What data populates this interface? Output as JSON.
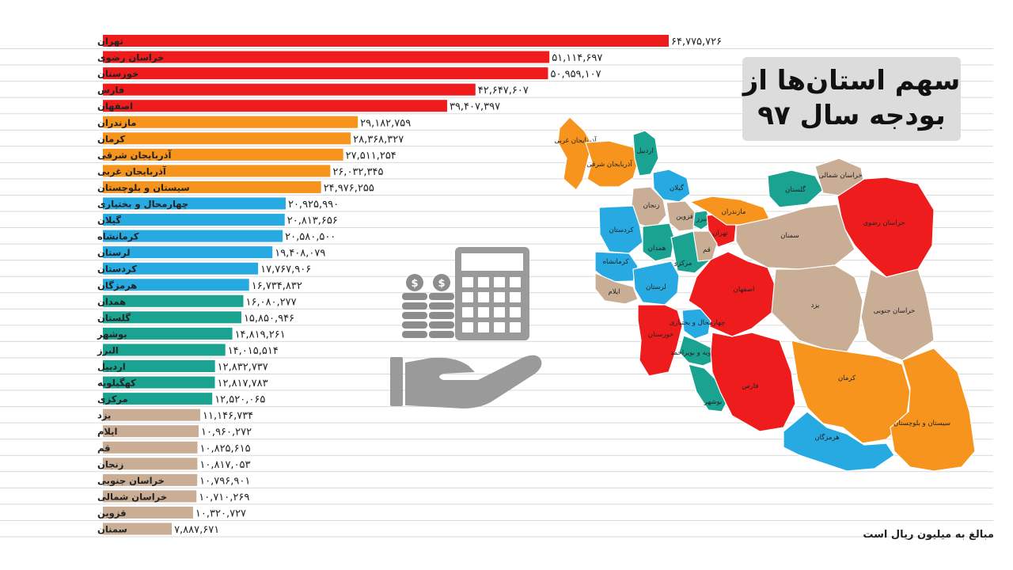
{
  "title": {
    "line1": "سهم استان‌ها از",
    "line2": "بودجه سال ۹۷"
  },
  "units_note": "مبالغ به میلیون ریال است",
  "colors": {
    "tier1": "#ee1c1c",
    "tier2": "#f7941d",
    "tier3": "#27aae1",
    "tier4": "#1aa391",
    "tier5": "#c9ad94",
    "map_gray": "#c7c7c7",
    "gridline": "#d9d9d9"
  },
  "icons": [
    "calculator-icon",
    "coin-stack-icon",
    "open-hand-icon"
  ],
  "chart_data": {
    "type": "bar",
    "orientation": "horizontal",
    "xlim": [
      0,
      70000000
    ],
    "categories": [
      "تهران",
      "خراسان رضوی",
      "خوزستان",
      "فارس",
      "اصفهان",
      "مازندران",
      "کرمان",
      "آذربایجان شرقی",
      "آذربایجان غربی",
      "سیستان و بلوچستان",
      "چهارمحال و بختیاری",
      "گیلان",
      "کرمانشاه",
      "لرستان",
      "کردستان",
      "هرمزگان",
      "همدان",
      "گلستان",
      "بوشهر",
      "البرز",
      "اردبیل",
      "کهگیلویه",
      "مرکزی",
      "یزد",
      "ایلام",
      "قم",
      "زنجان",
      "خراسان جنوبی",
      "خراسان شمالی",
      "قزوین",
      "سمنان"
    ],
    "values": [
      64775726,
      51114697,
      50959107,
      42647607,
      39407397,
      29182759,
      28368327,
      27511254,
      26032345,
      24976255,
      20925990,
      20813656,
      20580500,
      19408079,
      17767906,
      16734832,
      16080277,
      15850946,
      14819261,
      14015514,
      12832737,
      12817783,
      12520065,
      11146734,
      10960272,
      10825615,
      10817053,
      10796901,
      10710269,
      10320727,
      7887671
    ],
    "value_labels": [
      "۶۴,۷۷۵,۷۲۶",
      "۵۱,۱۱۴,۶۹۷",
      "۵۰,۹۵۹,۱۰۷",
      "۴۲,۶۴۷,۶۰۷",
      "۳۹,۴۰۷,۳۹۷",
      "۲۹,۱۸۲,۷۵۹",
      "۲۸,۳۶۸,۳۲۷",
      "۲۷,۵۱۱,۲۵۴",
      "۲۶,۰۳۲,۳۴۵",
      "۲۴,۹۷۶,۲۵۵",
      "۲۰,۹۲۵,۹۹۰",
      "۲۰,۸۱۳,۶۵۶",
      "۲۰,۵۸۰,۵۰۰",
      "۱۹,۴۰۸,۰۷۹",
      "۱۷,۷۶۷,۹۰۶",
      "۱۶,۷۳۴,۸۳۲",
      "۱۶,۰۸۰,۲۷۷",
      "۱۵,۸۵۰,۹۴۶",
      "۱۴,۸۱۹,۲۶۱",
      "۱۴,۰۱۵,۵۱۴",
      "۱۲,۸۳۲,۷۳۷",
      "۱۲,۸۱۷,۷۸۳",
      "۱۲,۵۲۰,۰۶۵",
      "۱۱,۱۴۶,۷۳۴",
      "۱۰,۹۶۰,۲۷۲",
      "۱۰,۸۲۵,۶۱۵",
      "۱۰,۸۱۷,۰۵۳",
      "۱۰,۷۹۶,۹۰۱",
      "۱۰,۷۱۰,۲۶۹",
      "۱۰,۳۲۰,۷۲۷",
      "۷,۸۸۷,۶۷۱"
    ],
    "tiers": [
      1,
      1,
      1,
      1,
      1,
      2,
      2,
      2,
      2,
      2,
      3,
      3,
      3,
      3,
      3,
      3,
      4,
      4,
      4,
      4,
      4,
      4,
      4,
      5,
      5,
      5,
      5,
      5,
      5,
      5,
      5
    ],
    "grid": true,
    "legend": "none"
  },
  "map": {
    "regions": [
      {
        "name": "آذربایجان غربی",
        "tier": 2
      },
      {
        "name": "آذربایجان شرقی",
        "tier": 2
      },
      {
        "name": "اردبیل",
        "tier": 4
      },
      {
        "name": "گیلان",
        "tier": 3
      },
      {
        "name": "زنجان",
        "tier": 5
      },
      {
        "name": "قزوین",
        "tier": 5
      },
      {
        "name": "البرز",
        "tier": 4
      },
      {
        "name": "تهران",
        "tier": 1
      },
      {
        "name": "مازندران",
        "tier": 2
      },
      {
        "name": "گلستان",
        "tier": 4
      },
      {
        "name": "خراسان شمالی",
        "tier": 5
      },
      {
        "name": "خراسان رضوی",
        "tier": 1
      },
      {
        "name": "سمنان",
        "tier": 5
      },
      {
        "name": "کردستان",
        "tier": 3
      },
      {
        "name": "همدان",
        "tier": 4
      },
      {
        "name": "کرمانشاه",
        "tier": 3
      },
      {
        "name": "مرکزی",
        "tier": 4
      },
      {
        "name": "قم",
        "tier": 5
      },
      {
        "name": "ایلام",
        "tier": 5
      },
      {
        "name": "لرستان",
        "tier": 3
      },
      {
        "name": "اصفهان",
        "tier": 1
      },
      {
        "name": "یزد",
        "tier": 5
      },
      {
        "name": "خراسان جنوبی",
        "tier": 5
      },
      {
        "name": "خوزستان",
        "tier": 1
      },
      {
        "name": "چهارمحال و بختیاری",
        "tier": 3
      },
      {
        "name": "کهگیلویه و بویراحمد",
        "tier": 4
      },
      {
        "name": "بوشهر",
        "tier": 4
      },
      {
        "name": "فارس",
        "tier": 1
      },
      {
        "name": "کرمان",
        "tier": 2
      },
      {
        "name": "سیستان و بلوچستان",
        "tier": 2
      },
      {
        "name": "هرمزگان",
        "tier": 3
      }
    ]
  }
}
